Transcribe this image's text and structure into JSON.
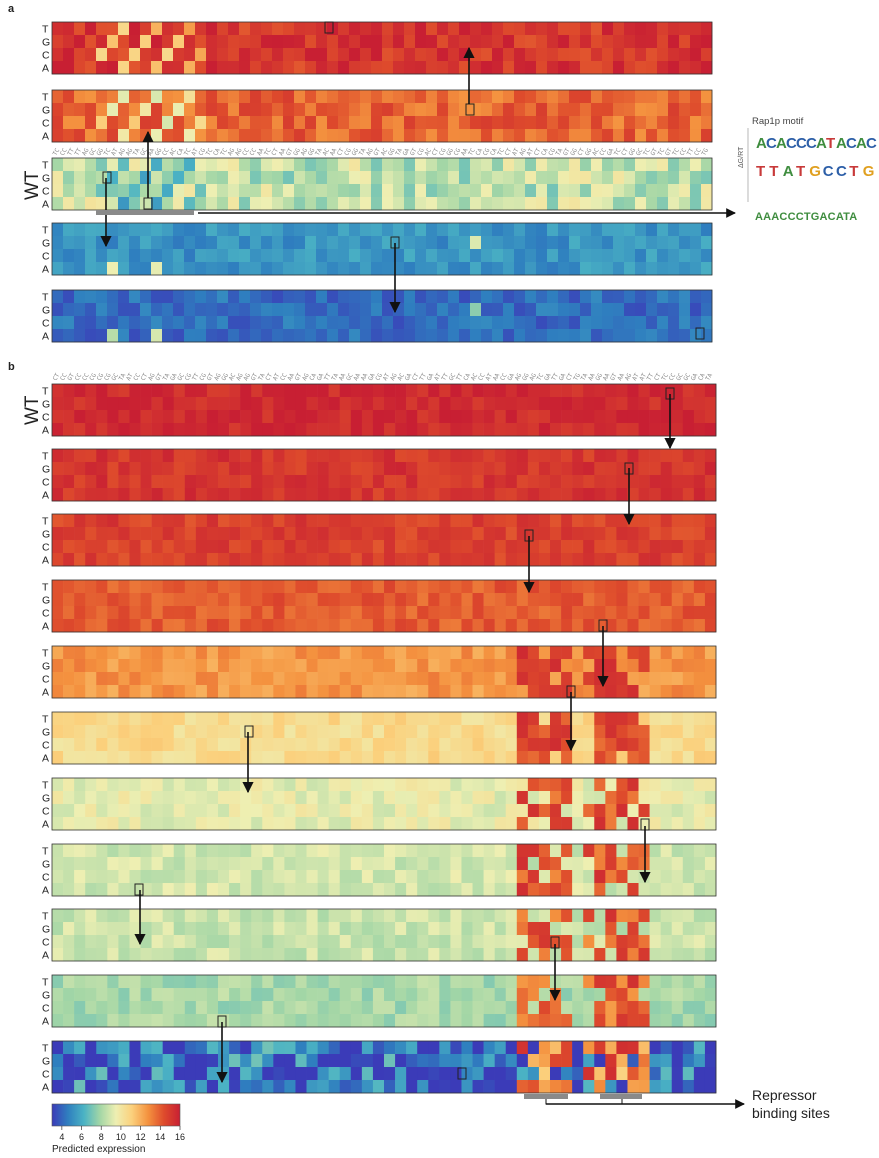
{
  "figure": {
    "panel_a_label": "a",
    "panel_b_label": "b",
    "wt_label": "WT",
    "row_labels": [
      "T",
      "G",
      "C",
      "A"
    ],
    "motif_title": "Rap1p motif",
    "motif_axis_label": "ΔG/RT",
    "motif_sequence": "AAACCCTGACATA",
    "repressor_label_line1": "Repressor",
    "repressor_label_line2": "binding sites",
    "colorbar_title": "Predicted expression",
    "colorbar_ticks": [
      "4",
      "6",
      "8",
      "10",
      "12",
      "14",
      "16"
    ],
    "colorbar_range": [
      3,
      16
    ],
    "colorscale": [
      "#3b3bb8",
      "#2f7fbf",
      "#4bb3c4",
      "#a3d6a6",
      "#eeefb2",
      "#fbd07c",
      "#f4923f",
      "#de4b2c",
      "#c81f33"
    ],
    "panel_a_means": [
      15.2,
      13.8,
      8.6,
      5.3,
      4.2
    ],
    "panel_b_means": [
      15.6,
      15.1,
      14.8,
      14.0,
      12.6,
      10.6,
      9.4,
      8.9,
      8.7,
      8.0,
      4.0
    ]
  }
}
